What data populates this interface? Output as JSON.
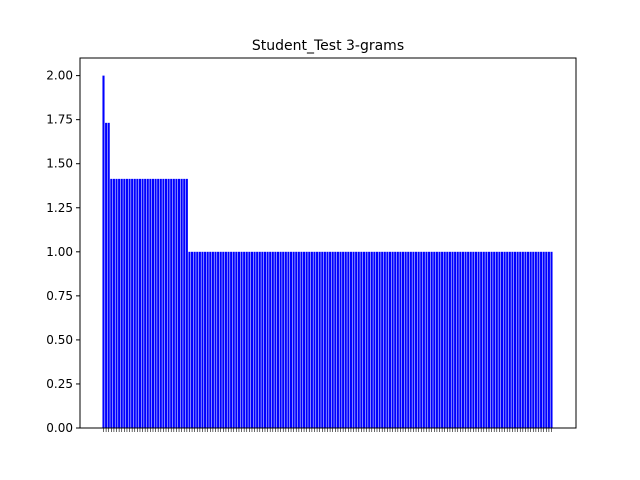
{
  "chart_data": {
    "type": "bar",
    "title": "Student_Test 3-grams",
    "xlabel": "",
    "ylabel": "",
    "ylim": [
      0,
      2.1
    ],
    "yticks": [
      "0.00",
      "0.25",
      "0.50",
      "0.75",
      "1.00",
      "1.25",
      "1.50",
      "1.75",
      "2.00"
    ],
    "bar_color": "#0000ff",
    "grid": false,
    "legend": "none",
    "values": [
      2.0,
      1.732,
      1.732,
      1.414,
      1.414,
      1.414,
      1.414,
      1.414,
      1.414,
      1.414,
      1.414,
      1.414,
      1.414,
      1.414,
      1.414,
      1.414,
      1.414,
      1.414,
      1.414,
      1.414,
      1.414,
      1.414,
      1.414,
      1.414,
      1.414,
      1.414,
      1.414,
      1.414,
      1.414,
      1.414,
      1.414,
      1.414,
      1.414,
      1.0,
      1.0,
      1.0,
      1.0,
      1.0,
      1.0,
      1.0,
      1.0,
      1.0,
      1.0,
      1.0,
      1.0,
      1.0,
      1.0,
      1.0,
      1.0,
      1.0,
      1.0,
      1.0,
      1.0,
      1.0,
      1.0,
      1.0,
      1.0,
      1.0,
      1.0,
      1.0,
      1.0,
      1.0,
      1.0,
      1.0,
      1.0,
      1.0,
      1.0,
      1.0,
      1.0,
      1.0,
      1.0,
      1.0,
      1.0,
      1.0,
      1.0,
      1.0,
      1.0,
      1.0,
      1.0,
      1.0,
      1.0,
      1.0,
      1.0,
      1.0,
      1.0,
      1.0,
      1.0,
      1.0,
      1.0,
      1.0,
      1.0,
      1.0,
      1.0,
      1.0,
      1.0,
      1.0,
      1.0,
      1.0,
      1.0,
      1.0,
      1.0,
      1.0,
      1.0,
      1.0,
      1.0,
      1.0,
      1.0,
      1.0,
      1.0,
      1.0,
      1.0,
      1.0,
      1.0,
      1.0,
      1.0,
      1.0,
      1.0,
      1.0,
      1.0,
      1.0,
      1.0,
      1.0,
      1.0,
      1.0,
      1.0,
      1.0,
      1.0,
      1.0,
      1.0,
      1.0,
      1.0,
      1.0,
      1.0,
      1.0,
      1.0,
      1.0,
      1.0,
      1.0,
      1.0,
      1.0,
      1.0,
      1.0,
      1.0,
      1.0,
      1.0,
      1.0,
      1.0,
      1.0,
      1.0,
      1.0,
      1.0,
      1.0,
      1.0,
      1.0,
      1.0,
      1.0,
      1.0,
      1.0,
      1.0,
      1.0,
      1.0,
      1.0,
      1.0,
      1.0,
      1.0,
      1.0,
      1.0,
      1.0,
      1.0,
      1.0,
      1.0,
      1.0,
      1.0
    ]
  }
}
